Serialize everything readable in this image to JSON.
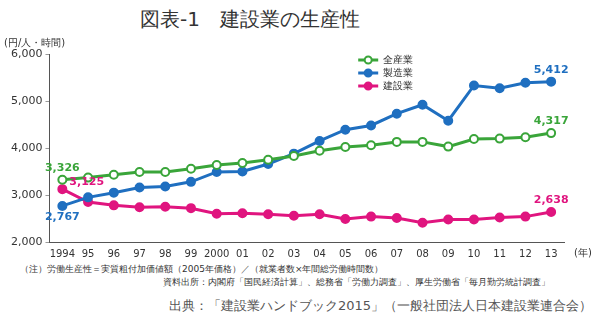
{
  "chart_data": {
    "type": "line",
    "title": "図表-1　建設業の生産性",
    "y_label": "(円/人・時間)",
    "x_label": "(年)",
    "note": "（注）労働生産性＝実質粗付加価値額（2005年価格）／（就業者数×年間総労働時間数）",
    "source": "資料出所：内閣府「国民経済計算」、総務省「労働力調査」、厚生労働省「毎月勤労統計調査」",
    "credit": "出典：「建設業ハンドブック2015」（一般社団法人日本建設業連合会）",
    "categories": [
      "1994",
      "95",
      "96",
      "97",
      "98",
      "99",
      "2000",
      "01",
      "02",
      "03",
      "04",
      "05",
      "06",
      "07",
      "08",
      "09",
      "10",
      "11",
      "12",
      "13"
    ],
    "series": [
      {
        "name": "全産業",
        "color": "#3aa53a",
        "marker": "circle_open",
        "line_style": "solid",
        "values": [
          3326,
          3370,
          3430,
          3490,
          3490,
          3560,
          3640,
          3680,
          3750,
          3830,
          3940,
          4020,
          4060,
          4130,
          4130,
          4030,
          4190,
          4200,
          4230,
          4317
        ],
        "value_labels": [
          "3,326",
          null,
          null,
          null,
          null,
          null,
          null,
          null,
          null,
          null,
          null,
          null,
          null,
          null,
          null,
          null,
          null,
          null,
          null,
          "4,317"
        ]
      },
      {
        "name": "製造業",
        "color": "#1f6fc0",
        "marker": "circle",
        "line_style": "solid",
        "values": [
          2767,
          2950,
          3050,
          3160,
          3180,
          3280,
          3490,
          3500,
          3660,
          3880,
          4150,
          4390,
          4480,
          4730,
          4920,
          4580,
          5330,
          5270,
          5390,
          5412
        ],
        "value_labels": [
          "2,767",
          null,
          null,
          null,
          null,
          null,
          null,
          null,
          null,
          null,
          null,
          null,
          null,
          null,
          null,
          null,
          null,
          null,
          null,
          "5,412"
        ]
      },
      {
        "name": "建設業",
        "color": "#e0157f",
        "marker": "circle",
        "line_style": "solid",
        "values": [
          3125,
          2850,
          2780,
          2740,
          2750,
          2720,
          2600,
          2610,
          2590,
          2560,
          2590,
          2490,
          2540,
          2510,
          2410,
          2480,
          2480,
          2520,
          2540,
          2638
        ],
        "value_labels": [
          "3,125",
          null,
          null,
          null,
          null,
          null,
          null,
          null,
          null,
          null,
          null,
          null,
          null,
          null,
          null,
          null,
          null,
          null,
          null,
          "2,638"
        ]
      }
    ],
    "ylim": [
      2000,
      6000
    ],
    "yticks": [
      {
        "value": 2000,
        "label": "2,000"
      },
      {
        "value": 3000,
        "label": "3,000"
      },
      {
        "value": 4000,
        "label": "4,000"
      },
      {
        "value": 5000,
        "label": "5,000"
      },
      {
        "value": 6000,
        "label": "6,000"
      }
    ],
    "grid": false,
    "legend": "top",
    "data_labels": true
  }
}
